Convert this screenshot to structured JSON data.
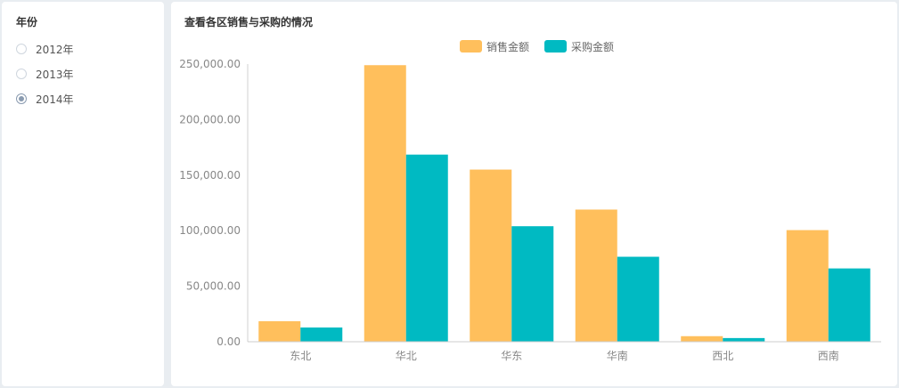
{
  "filter": {
    "title": "年份",
    "options": [
      {
        "label": "2012年",
        "checked": false
      },
      {
        "label": "2013年",
        "checked": false
      },
      {
        "label": "2014年",
        "checked": true
      }
    ]
  },
  "chart_data": {
    "type": "bar",
    "title": "查看各区销售与采购的情况",
    "categories": [
      "东北",
      "华北",
      "华东",
      "华南",
      "西北",
      "西南"
    ],
    "series": [
      {
        "name": "销售金额",
        "color": "#ffbf5c",
        "values": [
          18500,
          249000,
          155000,
          119000,
          5000,
          100500
        ]
      },
      {
        "name": "采购金额",
        "color": "#00bac2",
        "values": [
          12800,
          168500,
          104000,
          76500,
          3300,
          66000
        ]
      }
    ],
    "yticks": [
      "0.00",
      "50,000.00",
      "100,000.00",
      "150,000.00",
      "200,000.00",
      "250,000.00"
    ],
    "ylim": [
      0,
      250000
    ],
    "legend": "top-center",
    "grid": false
  }
}
